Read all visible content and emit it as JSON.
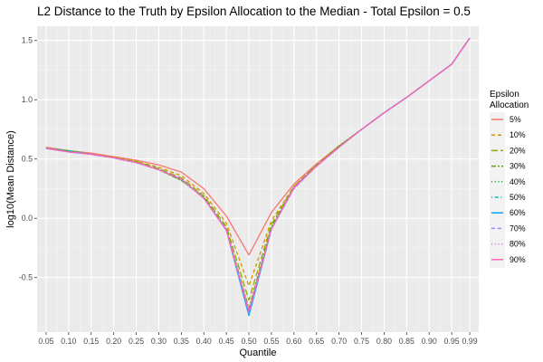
{
  "chart_data": {
    "type": "line",
    "title": "L2 Distance to the Truth by Epsilon Allocation to the Median - Total Epsilon = 0.5",
    "xlabel": "Quantile",
    "ylabel": "log10(Mean Distance)",
    "x": [
      0.05,
      0.1,
      0.15,
      0.2,
      0.25,
      0.3,
      0.35,
      0.4,
      0.45,
      0.5,
      0.55,
      0.6,
      0.65,
      0.7,
      0.75,
      0.8,
      0.85,
      0.9,
      0.95,
      0.99
    ],
    "x_tick_labels": [
      "0.05",
      "0.10",
      "0.15",
      "0.20",
      "0.25",
      "0.30",
      "0.35",
      "0.40",
      "0.45",
      "0.50",
      "0.55",
      "0.60",
      "0.65",
      "0.70",
      "0.75",
      "0.80",
      "0.85",
      "0.90",
      "0.95",
      "0.99"
    ],
    "xlim": [
      0.03,
      1.01
    ],
    "ylim": [
      -0.96,
      1.62
    ],
    "y_ticks": [
      -0.5,
      0.0,
      0.5,
      1.0,
      1.5
    ],
    "y_tick_labels": [
      "-0.5",
      "0.0",
      "0.5",
      "1.0",
      "1.5"
    ],
    "grid": true,
    "background": "#ebebeb",
    "legend_placement": "right",
    "legend_title_lines": [
      "Epsilon",
      "Allocation"
    ],
    "series": [
      {
        "name": "5%",
        "color": "#F8766D",
        "dash": "solid",
        "values": [
          0.6,
          0.57,
          0.55,
          0.52,
          0.49,
          0.45,
          0.39,
          0.25,
          0.02,
          -0.31,
          0.05,
          0.29,
          0.46,
          0.61,
          0.75,
          0.89,
          1.02,
          1.16,
          1.3,
          1.52
        ]
      },
      {
        "name": "10%",
        "color": "#D39200",
        "dash": "dashed",
        "values": [
          0.59,
          0.57,
          0.54,
          0.52,
          0.48,
          0.43,
          0.36,
          0.21,
          -0.04,
          -0.57,
          -0.02,
          0.27,
          0.45,
          0.61,
          0.75,
          0.89,
          1.02,
          1.16,
          1.3,
          1.52
        ]
      },
      {
        "name": "20%",
        "color": "#93AA00",
        "dash": "longdash",
        "values": [
          0.59,
          0.57,
          0.54,
          0.51,
          0.48,
          0.42,
          0.34,
          0.19,
          -0.07,
          -0.69,
          -0.05,
          0.27,
          0.45,
          0.61,
          0.75,
          0.89,
          1.02,
          1.16,
          1.3,
          1.52
        ]
      },
      {
        "name": "30%",
        "color": "#5BA300",
        "dash": "twodash",
        "values": [
          0.59,
          0.57,
          0.54,
          0.51,
          0.47,
          0.41,
          0.32,
          0.18,
          -0.09,
          -0.76,
          -0.07,
          0.26,
          0.44,
          0.61,
          0.75,
          0.89,
          1.02,
          1.16,
          1.3,
          1.52
        ]
      },
      {
        "name": "40%",
        "color": "#00BA38",
        "dash": "dotted",
        "values": [
          0.59,
          0.57,
          0.54,
          0.51,
          0.47,
          0.41,
          0.32,
          0.17,
          -0.1,
          -0.78,
          -0.08,
          0.26,
          0.44,
          0.6,
          0.75,
          0.89,
          1.02,
          1.16,
          1.3,
          1.52
        ]
      },
      {
        "name": "50%",
        "color": "#00BFC4",
        "dash": "dotdash",
        "values": [
          0.59,
          0.57,
          0.54,
          0.51,
          0.47,
          0.41,
          0.33,
          0.17,
          -0.1,
          -0.8,
          -0.09,
          0.26,
          0.44,
          0.6,
          0.75,
          0.89,
          1.02,
          1.16,
          1.3,
          1.52
        ]
      },
      {
        "name": "60%",
        "color": "#00A5FF",
        "dash": "solid",
        "values": [
          0.59,
          0.56,
          0.54,
          0.51,
          0.47,
          0.41,
          0.33,
          0.17,
          -0.1,
          -0.82,
          -0.09,
          0.26,
          0.44,
          0.6,
          0.75,
          0.89,
          1.02,
          1.16,
          1.3,
          1.52
        ]
      },
      {
        "name": "70%",
        "color": "#9590FF",
        "dash": "dashed",
        "values": [
          0.59,
          0.56,
          0.54,
          0.51,
          0.47,
          0.41,
          0.33,
          0.17,
          -0.1,
          -0.8,
          -0.09,
          0.25,
          0.44,
          0.6,
          0.75,
          0.89,
          1.02,
          1.16,
          1.3,
          1.52
        ]
      },
      {
        "name": "80%",
        "color": "#E76BF3",
        "dash": "dotted",
        "values": [
          0.59,
          0.56,
          0.54,
          0.51,
          0.47,
          0.41,
          0.33,
          0.17,
          -0.1,
          -0.79,
          -0.09,
          0.25,
          0.44,
          0.6,
          0.75,
          0.89,
          1.02,
          1.16,
          1.3,
          1.52
        ]
      },
      {
        "name": "90%",
        "color": "#FF62BC",
        "dash": "solid",
        "values": [
          0.59,
          0.56,
          0.54,
          0.51,
          0.47,
          0.41,
          0.33,
          0.17,
          -0.1,
          -0.78,
          -0.09,
          0.26,
          0.44,
          0.6,
          0.75,
          0.89,
          1.02,
          1.16,
          1.3,
          1.52
        ]
      }
    ]
  }
}
